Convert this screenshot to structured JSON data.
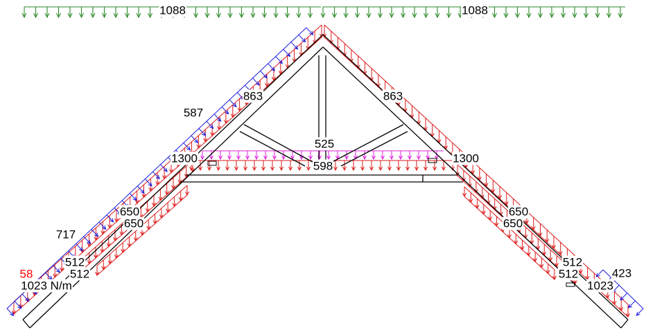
{
  "colors": {
    "structure": "#000000",
    "snow_load": "#2a8a2a",
    "wind_load": "#1a1add",
    "dead_load": "#dd1a1a",
    "ceiling_load": "#dd22dd",
    "highlight_label": "#ff0000",
    "label_text": "#000000"
  },
  "loads": {
    "top_left": "1088",
    "top_right": "1088",
    "left_rafter_upper": "863",
    "right_rafter_upper": "863",
    "left_wind_upper": "587",
    "left_joint": "1300",
    "right_joint": "1300",
    "ceiling_magenta": "525",
    "ceiling_red": "598",
    "left_lower_a": "650",
    "left_lower_b": "650",
    "right_lower_a": "650",
    "right_lower_b": "650",
    "left_wind_lower": "717",
    "left_eave_a": "512",
    "left_eave_b": "512",
    "right_eave_a": "512",
    "right_eave_b": "512",
    "left_highlight": "58",
    "left_eave_unit": "1023 N/m",
    "right_eave": "1023",
    "right_wind": "423"
  }
}
